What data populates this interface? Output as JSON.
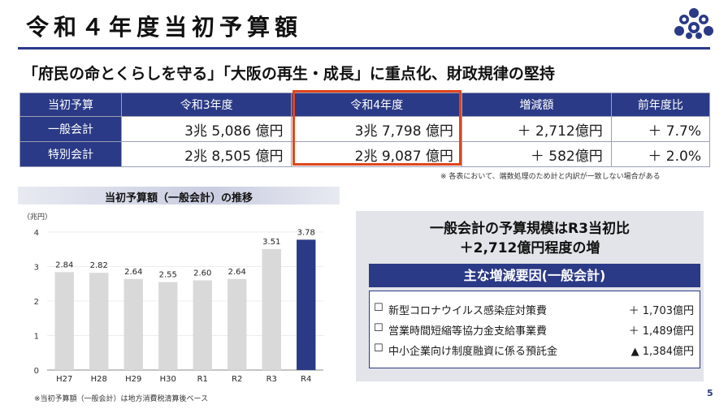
{
  "title": "令和４年度当初予算額",
  "subtitle": "「府民の命とくらしを守る」「大阪の再生・成長」に重点化、財政規律の堅持",
  "table": {
    "headers": [
      "当初予算",
      "令和3年度",
      "令和4年度",
      "増減額",
      "前年度比"
    ],
    "rows": [
      {
        "label": "一般会計",
        "r3": "3兆 5,086 億円",
        "r4": "3兆 7,798 億円",
        "diff": "＋ 2,712億円",
        "ratio": "＋ 7.7%"
      },
      {
        "label": "特別会計",
        "r3": "2兆 8,505 億円",
        "r4": "2兆 9,087 億円",
        "diff": "＋ 582億円",
        "ratio": "＋ 2.0%"
      }
    ],
    "note": "※ 各表において、端数処理のため計と内訳が一致しない場合がある"
  },
  "chart_data": {
    "type": "bar",
    "title": "当初予算額（一般会計）の推移",
    "ylabel": "（兆円）",
    "categories": [
      "H27",
      "H28",
      "H29",
      "H30",
      "R1",
      "R2",
      "R3",
      "R4"
    ],
    "values": [
      2.84,
      2.82,
      2.64,
      2.55,
      2.6,
      2.64,
      3.51,
      3.78
    ],
    "value_labels": [
      "2.84",
      "2.82",
      "2.64",
      "2.55",
      "2.60",
      "2.64",
      "3.51",
      "3.78"
    ],
    "yticks": [
      "0",
      "1",
      "2",
      "3",
      "4"
    ],
    "ylim": [
      0,
      4
    ],
    "highlight_index": 7,
    "colors": {
      "bar": "#d9d9d9",
      "highlight": "#2b3a86"
    },
    "note": "※当初予算額（一般会計）は地方消費税清算後ベース"
  },
  "summary": {
    "line1": "一般会計の予算規模はR3当初比",
    "line2": "＋2,712億円程度の増",
    "factors_title": "主な増減要因(一般会計)",
    "factors": [
      {
        "checkbox": "☐",
        "label": "新型コロナウイルス感染症対策費",
        "value": "＋ 1,703億円"
      },
      {
        "checkbox": "☐",
        "label": "営業時間短縮等協力金支給事業費",
        "value": "＋ 1,489億円"
      },
      {
        "checkbox": "☐",
        "label": "中小企業向け制度融資に係る預託金",
        "value": "▲ 1,384億円"
      }
    ]
  },
  "page_number": "5",
  "colors": {
    "accent": "#2b3a86",
    "highlight_border": "#e0451c"
  }
}
